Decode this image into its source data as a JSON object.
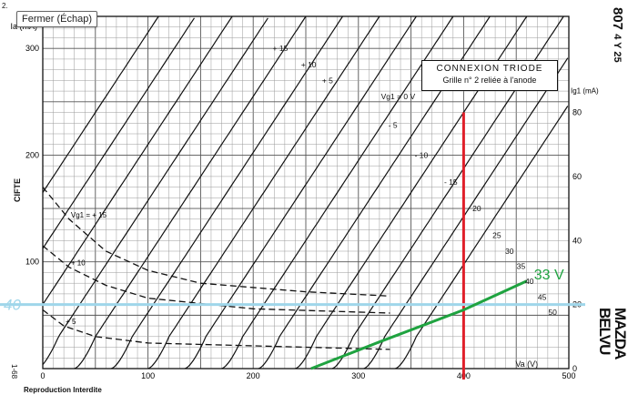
{
  "tooltip": "Fermer (Échap)",
  "tube_name": "807",
  "tube_code": "4 Y 25",
  "brand": "MAZDA BELVU",
  "footer": "Reproduction Interdite",
  "code": "1-68",
  "corner": "2.",
  "side_label": "CIFTE",
  "box": {
    "line1": "CONNEXION TRIODE",
    "line2": "Grille n° 2 reliée à l'anode"
  },
  "annotations": {
    "left_marker": "40",
    "curve_marker": "33 V"
  },
  "chart_data": {
    "type": "line",
    "title": "CONNEXION TRIODE",
    "subtitle": "Grille n° 2 reliée à l'anode",
    "xlabel": "Va (V)",
    "ylabel": "Ia (mA)",
    "y2label": "Ig1 (mA)",
    "xlim": [
      0,
      500
    ],
    "ylim": [
      0,
      330
    ],
    "y2lim": [
      0,
      110
    ],
    "x_ticks": [
      0,
      100,
      200,
      300,
      400,
      500
    ],
    "y_ticks": [
      100,
      200,
      300
    ],
    "y2_ticks": [
      0,
      20,
      40,
      60,
      80
    ],
    "grid": true,
    "anode_curves": [
      {
        "label": "+ 15",
        "start": -110,
        "slope": 1.5,
        "label_at": [
          215,
          300
        ]
      },
      {
        "label": "+ 10",
        "start": -75,
        "slope": 1.5,
        "label_at": [
          242,
          285
        ]
      },
      {
        "label": "+ 5",
        "start": -40,
        "slope": 1.5,
        "label_at": [
          262,
          270
        ]
      },
      {
        "label": "Vg1 = 0 V",
        "start": -5,
        "slope": 1.5,
        "label_at": [
          318,
          255
        ]
      },
      {
        "label": "- 5",
        "start": 30,
        "slope": 1.5,
        "label_at": [
          325,
          228
        ]
      },
      {
        "label": "- 10",
        "start": 65,
        "slope": 1.5,
        "label_at": [
          350,
          200
        ]
      },
      {
        "label": "- 15",
        "start": 100,
        "slope": 1.5,
        "label_at": [
          378,
          175
        ]
      },
      {
        "label": "20",
        "start": 135,
        "slope": 1.5,
        "label_at": [
          405,
          150
        ]
      },
      {
        "label": "25",
        "start": 170,
        "slope": 1.5,
        "label_at": [
          424,
          125
        ]
      },
      {
        "label": "30",
        "start": 205,
        "slope": 1.5,
        "label_at": [
          436,
          110
        ]
      },
      {
        "label": "35",
        "start": 240,
        "slope": 1.5,
        "label_at": [
          447,
          96
        ]
      },
      {
        "label": "40",
        "start": 275,
        "slope": 1.5,
        "label_at": [
          455,
          82
        ]
      },
      {
        "label": "45",
        "start": 305,
        "slope": 1.5,
        "label_at": [
          467,
          67
        ]
      },
      {
        "label": "50",
        "start": 335,
        "slope": 1.5,
        "label_at": [
          477,
          53
        ]
      }
    ],
    "grid_current_curves": [
      {
        "label": "Vg1 = + 15",
        "points": [
          [
            0,
            170
          ],
          [
            25,
            140
          ],
          [
            60,
            110
          ],
          [
            100,
            92
          ],
          [
            150,
            80
          ],
          [
            250,
            72
          ],
          [
            330,
            68
          ]
        ]
      },
      {
        "label": "+ 10",
        "points": [
          [
            0,
            115
          ],
          [
            25,
            95
          ],
          [
            60,
            78
          ],
          [
            100,
            66
          ],
          [
            200,
            56
          ],
          [
            330,
            52
          ]
        ]
      },
      {
        "label": "+ 5",
        "points": [
          [
            0,
            55
          ],
          [
            20,
            40
          ],
          [
            50,
            30
          ],
          [
            100,
            24
          ],
          [
            250,
            20
          ],
          [
            330,
            18
          ]
        ]
      }
    ],
    "markers": [
      {
        "type": "vertical_line",
        "x": 400,
        "color": "#e0202a"
      },
      {
        "type": "horizontal_line",
        "y": 60,
        "color": "#9fd6ea",
        "label": "40"
      },
      {
        "type": "line",
        "label": "33 V",
        "color": "#1fa340",
        "points": [
          [
            255,
            0
          ],
          [
            320,
            25
          ],
          [
            400,
            55
          ],
          [
            460,
            82
          ]
        ]
      }
    ]
  }
}
